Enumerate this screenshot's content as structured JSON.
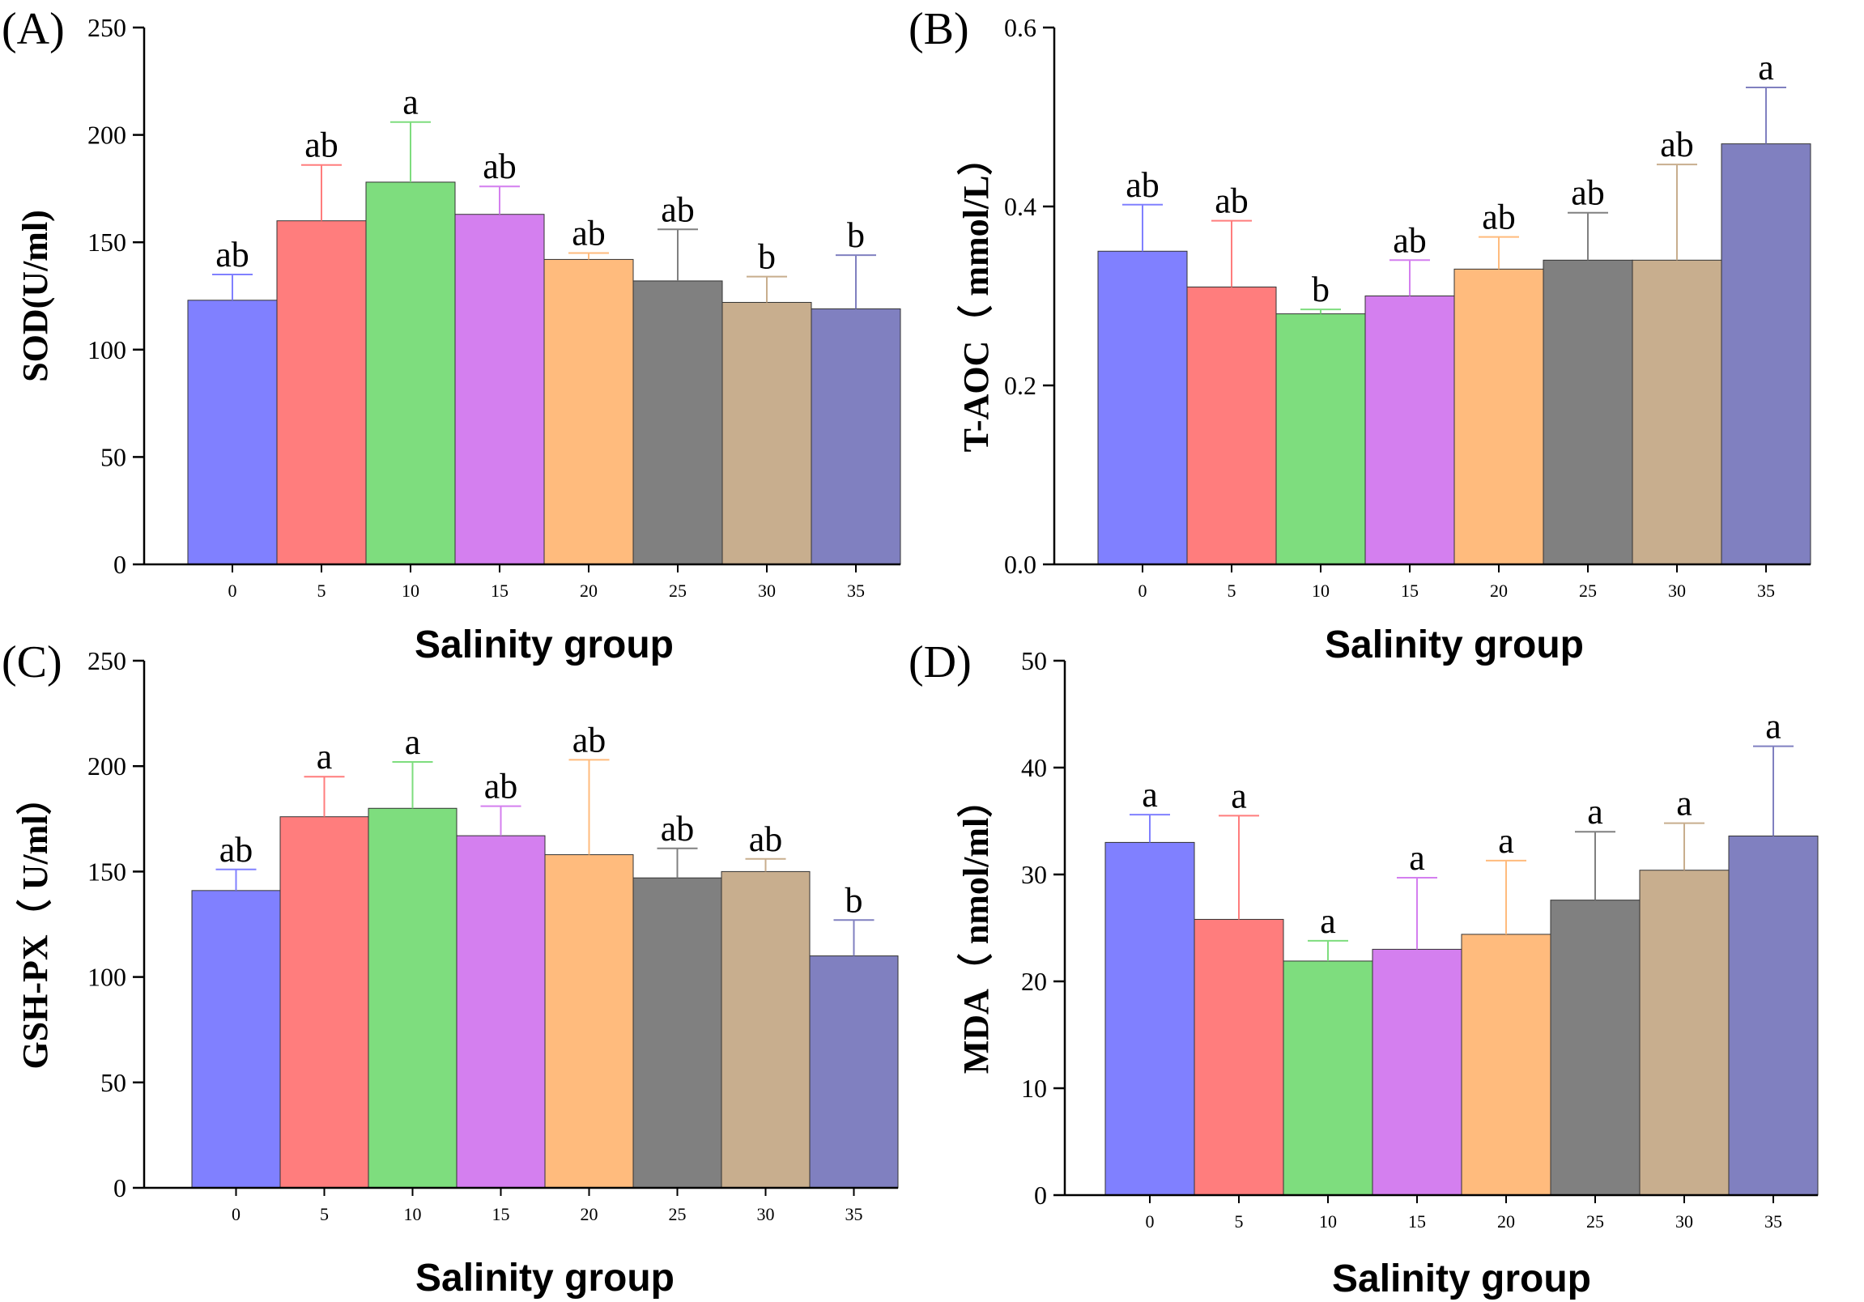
{
  "figure": {
    "xlabel": "Salinity group",
    "categories": [
      "0",
      "5",
      "10",
      "15",
      "20",
      "25",
      "30",
      "35"
    ],
    "colors": [
      "#8080ff",
      "#ff7d7d",
      "#7edd7e",
      "#d47fef",
      "#ffbb7d",
      "#808080",
      "#c8ae8e",
      "#8080c0"
    ]
  },
  "chart_data": [
    {
      "type": "bar",
      "panel": "(A)",
      "title": "",
      "xlabel": "Salinity group",
      "ylabel": "SOD(U/ml)",
      "categories": [
        "0",
        "5",
        "10",
        "15",
        "20",
        "25",
        "30",
        "35"
      ],
      "values": [
        123,
        160,
        178,
        163,
        142,
        132,
        122,
        119
      ],
      "errors": [
        12,
        26,
        28,
        13,
        3,
        24,
        12,
        25
      ],
      "labels": [
        "ab",
        "ab",
        "a",
        "ab",
        "ab",
        "ab",
        "b",
        "b"
      ],
      "ylim": [
        0,
        250
      ],
      "yticks": [
        "0",
        "50",
        "100",
        "150",
        "200",
        "250"
      ],
      "ytick_values": [
        0,
        50,
        100,
        150,
        200,
        250
      ]
    },
    {
      "type": "bar",
      "panel": "(B)",
      "title": "",
      "xlabel": "Salinity group",
      "ylabel": "T-AOC（ mmol/L）",
      "categories": [
        "0",
        "5",
        "10",
        "15",
        "20",
        "25",
        "30",
        "35"
      ],
      "values": [
        0.35,
        0.31,
        0.28,
        0.3,
        0.33,
        0.34,
        0.34,
        0.47
      ],
      "errors": [
        0.052,
        0.074,
        0.005,
        0.04,
        0.036,
        0.053,
        0.107,
        0.063
      ],
      "labels": [
        "ab",
        "ab",
        "b",
        "ab",
        "ab",
        "ab",
        "ab",
        "a"
      ],
      "ylim": [
        0,
        0.6
      ],
      "yticks": [
        "0.0",
        "0.2",
        "0.4",
        "0.6"
      ],
      "ytick_values": [
        0,
        0.2,
        0.4,
        0.6
      ]
    },
    {
      "type": "bar",
      "panel": "(C)",
      "title": "",
      "xlabel": "Salinity group",
      "ylabel": "GSH-PX（ U/ml）",
      "categories": [
        "0",
        "5",
        "10",
        "15",
        "20",
        "25",
        "30",
        "35"
      ],
      "values": [
        141,
        176,
        180,
        167,
        158,
        147,
        150,
        110
      ],
      "errors": [
        10,
        19,
        22,
        14,
        45,
        14,
        6,
        17
      ],
      "labels": [
        "ab",
        "a",
        "a",
        "ab",
        "ab",
        "ab",
        "ab",
        "b"
      ],
      "ylim": [
        0,
        250
      ],
      "yticks": [
        "0",
        "50",
        "100",
        "150",
        "200",
        "250"
      ],
      "ytick_values": [
        0,
        50,
        100,
        150,
        200,
        250
      ]
    },
    {
      "type": "bar",
      "panel": "(D)",
      "title": "",
      "xlabel": "Salinity group",
      "ylabel": "MDA（ nmol/ml）",
      "categories": [
        "0",
        "5",
        "10",
        "15",
        "20",
        "25",
        "30",
        "35"
      ],
      "values": [
        33.0,
        25.8,
        21.9,
        23.0,
        24.4,
        27.6,
        30.4,
        33.6
      ],
      "errors": [
        2.6,
        9.7,
        1.9,
        6.7,
        6.9,
        6.4,
        4.4,
        8.4
      ],
      "labels": [
        "a",
        "a",
        "a",
        "a",
        "a",
        "a",
        "a",
        "a"
      ],
      "ylim": [
        0,
        50
      ],
      "yticks": [
        "0",
        "10",
        "20",
        "30",
        "40",
        "50"
      ],
      "ytick_values": [
        0,
        10,
        20,
        30,
        40,
        50
      ]
    }
  ]
}
